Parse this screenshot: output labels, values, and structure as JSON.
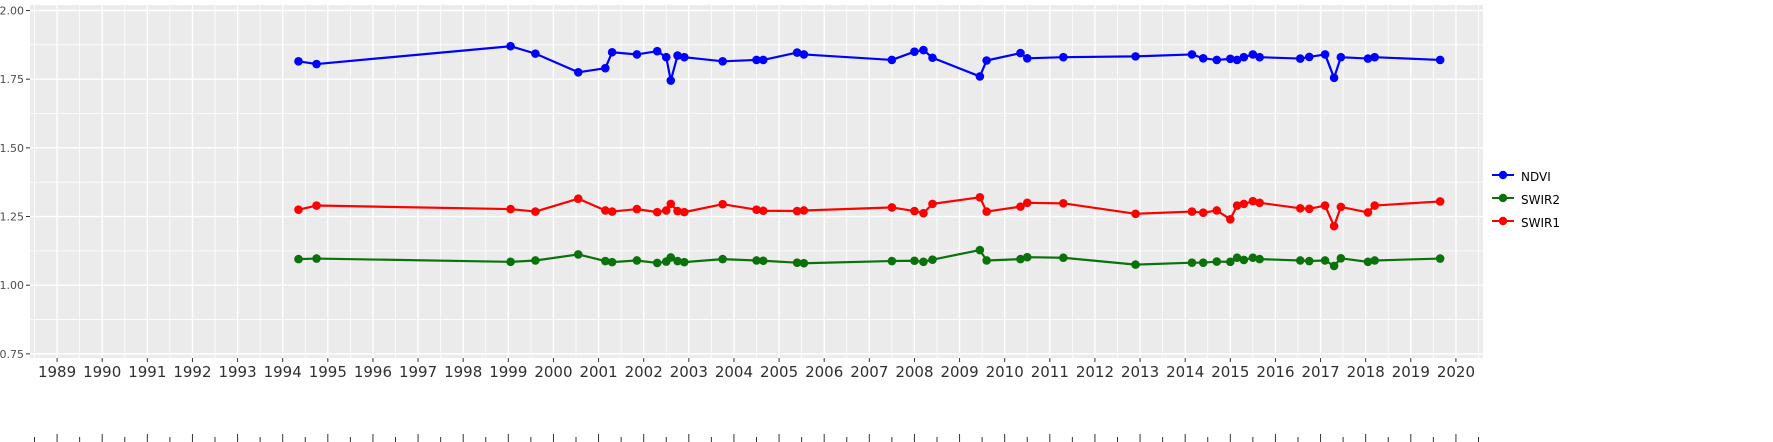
{
  "colors": {
    "background": "#ffffff",
    "panel": "#ebebeb",
    "grid": "#ffffff",
    "tick": "#333333",
    "x_text": "#303030",
    "y_text": "#4d4d4d"
  },
  "chart_data": {
    "type": "line",
    "title": "",
    "xlabel": "",
    "ylabel": "",
    "grid": true,
    "legend_position": "right",
    "xlim": [
      1988.4,
      2020.6
    ],
    "ylim": [
      0.735,
      2.02
    ],
    "x_ticks": [
      1989,
      1990,
      1991,
      1992,
      1993,
      1994,
      1995,
      1996,
      1997,
      1998,
      1999,
      2000,
      2001,
      2002,
      2003,
      2004,
      2005,
      2006,
      2007,
      2008,
      2009,
      2010,
      2011,
      2012,
      2013,
      2014,
      2015,
      2016,
      2017,
      2018,
      2019,
      2020
    ],
    "x_tick_labels": [
      "1989",
      "1990",
      "1991",
      "1992",
      "1993",
      "1994",
      "1995",
      "1996",
      "1997",
      "1998",
      "1999",
      "2000",
      "2001",
      "2002",
      "2003",
      "2004",
      "2005",
      "2006",
      "2007",
      "2008",
      "2009",
      "2010",
      "2011",
      "2012",
      "2013",
      "2014",
      "2015",
      "2016",
      "2017",
      "2018",
      "2019",
      "2020"
    ],
    "y_ticks": [
      0.75,
      1.0,
      1.25,
      1.5,
      1.75,
      2.0
    ],
    "y_tick_labels": [
      "0.75",
      "1.00",
      "1.25",
      "1.50",
      "1.75",
      "2.00"
    ],
    "x": [
      1994.35,
      1994.75,
      1999.05,
      1999.6,
      2000.55,
      2001.15,
      2001.3,
      2001.85,
      2002.3,
      2002.5,
      2002.6,
      2002.75,
      2002.9,
      2003.75,
      2004.5,
      2004.65,
      2005.4,
      2005.55,
      2007.5,
      2008.0,
      2008.2,
      2008.4,
      2009.45,
      2009.6,
      2010.35,
      2010.5,
      2011.3,
      2012.9,
      2014.15,
      2014.4,
      2014.7,
      2015.0,
      2015.15,
      2015.3,
      2015.5,
      2015.65,
      2016.55,
      2016.75,
      2017.1,
      2017.3,
      2017.45,
      2018.05,
      2018.2,
      2019.65
    ],
    "series": [
      {
        "name": "NDVI",
        "color": "#0000ff",
        "values": [
          1.815,
          1.805,
          1.87,
          1.843,
          1.775,
          1.79,
          1.848,
          1.84,
          1.852,
          1.83,
          1.745,
          1.836,
          1.83,
          1.815,
          1.82,
          1.82,
          1.847,
          1.84,
          1.82,
          1.85,
          1.856,
          1.828,
          1.76,
          1.818,
          1.845,
          1.826,
          1.83,
          1.833,
          1.84,
          1.826,
          1.82,
          1.824,
          1.82,
          1.83,
          1.84,
          1.83,
          1.825,
          1.831,
          1.84,
          1.755,
          1.83,
          1.825,
          1.83,
          1.82
        ]
      },
      {
        "name": "SWIR2",
        "color": "#0b720b",
        "values": [
          1.095,
          1.097,
          1.085,
          1.09,
          1.112,
          1.088,
          1.084,
          1.09,
          1.081,
          1.086,
          1.101,
          1.088,
          1.084,
          1.095,
          1.09,
          1.089,
          1.082,
          1.08,
          1.088,
          1.089,
          1.085,
          1.093,
          1.128,
          1.09,
          1.095,
          1.102,
          1.1,
          1.075,
          1.082,
          1.082,
          1.086,
          1.085,
          1.1,
          1.092,
          1.1,
          1.095,
          1.09,
          1.088,
          1.09,
          1.07,
          1.098,
          1.085,
          1.09,
          1.097
        ]
      },
      {
        "name": "SWIR1",
        "color": "#ff0000",
        "values": [
          1.275,
          1.29,
          1.277,
          1.268,
          1.315,
          1.272,
          1.268,
          1.277,
          1.266,
          1.272,
          1.296,
          1.27,
          1.266,
          1.295,
          1.275,
          1.271,
          1.27,
          1.272,
          1.283,
          1.27,
          1.262,
          1.296,
          1.32,
          1.268,
          1.286,
          1.3,
          1.298,
          1.26,
          1.268,
          1.264,
          1.272,
          1.24,
          1.29,
          1.296,
          1.306,
          1.3,
          1.28,
          1.278,
          1.29,
          1.215,
          1.285,
          1.265,
          1.29,
          1.305
        ]
      }
    ]
  }
}
